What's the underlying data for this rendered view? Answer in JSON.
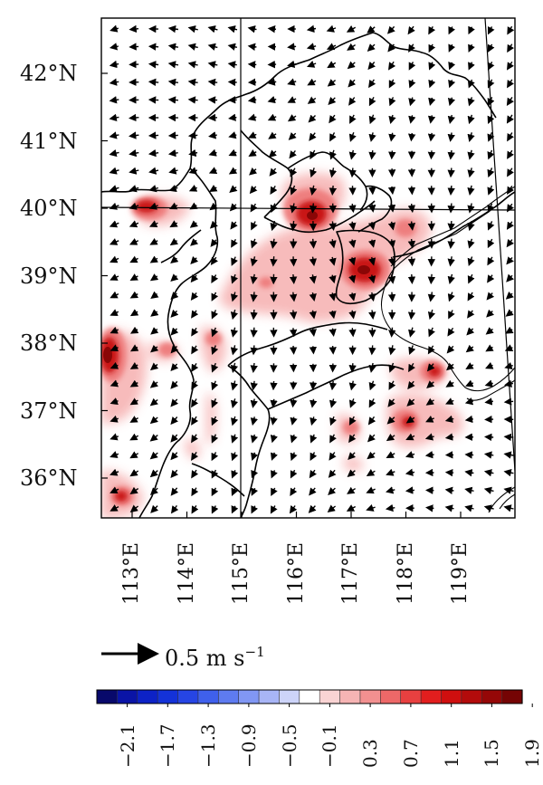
{
  "map": {
    "lat_labels": [
      "42°N",
      "41°N",
      "40°N",
      "39°N",
      "38°N",
      "37°N",
      "36°N"
    ],
    "lon_labels": [
      "113°E",
      "114°E",
      "115°E",
      "116°E",
      "117°E",
      "118°E",
      "119°E"
    ],
    "lat_range": [
      35.4,
      42.8
    ],
    "lon_range": [
      112.45,
      119.95
    ],
    "reference_vector": {
      "text": "0.5 m s",
      "exponent": "−1",
      "magnitude": 0.5
    },
    "colorbar": {
      "labels": [
        "−2.1",
        "−1.7",
        "−1.3",
        "−0.9",
        "−0.5",
        "−0.1",
        "0.3",
        "0.7",
        "1.1",
        "1.5",
        "1.9"
      ],
      "colors": [
        "#08096b",
        "#0a14a6",
        "#0d22c6",
        "#1432d8",
        "#2645e4",
        "#3f60ec",
        "#5e7bf0",
        "#8197f4",
        "#a8b5f6",
        "#cdd4f9",
        "#ffffff",
        "#f9d3d3",
        "#f6b4b4",
        "#f29090",
        "#ed6868",
        "#e84040",
        "#e21e1e",
        "#cf0f0f",
        "#b30b0b",
        "#950707",
        "#750404"
      ]
    },
    "accent_color": "#e21e1e"
  }
}
